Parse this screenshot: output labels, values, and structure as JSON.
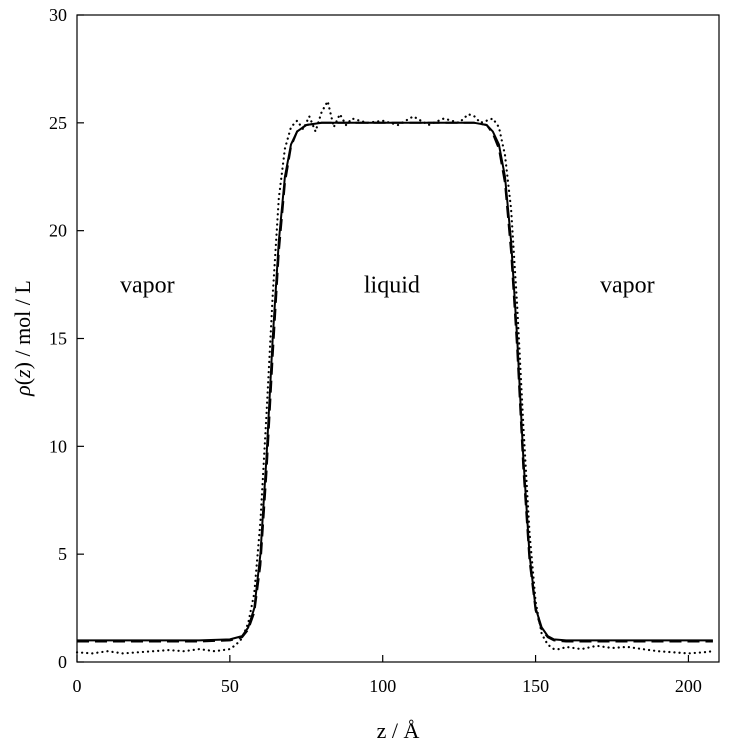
{
  "chart_data": {
    "type": "line",
    "title": "",
    "xlabel": "z / Å",
    "ylabel_parts": [
      "ρ",
      "(",
      "z",
      ") / mol / L"
    ],
    "xlim": [
      0,
      210
    ],
    "ylim": [
      0,
      30
    ],
    "xticks": [
      0,
      50,
      100,
      150,
      200
    ],
    "yticks": [
      0,
      5,
      10,
      15,
      20,
      25,
      30
    ],
    "grid": false,
    "legend": "none",
    "annotations": [
      {
        "text": "vapor",
        "x": 23,
        "y": 17.5
      },
      {
        "text": "liquid",
        "x": 103,
        "y": 17.5
      },
      {
        "text": "vapor",
        "x": 180,
        "y": 17.5
      }
    ],
    "series": [
      {
        "style": "solid",
        "x": [
          0,
          40,
          50,
          54,
          56,
          58,
          60,
          62,
          64,
          66,
          68,
          70,
          72,
          75,
          80,
          90,
          100,
          110,
          120,
          130,
          134,
          136,
          138,
          140,
          142,
          144,
          146,
          148,
          150,
          152,
          154,
          156,
          160,
          170,
          180,
          190,
          200,
          208
        ],
        "y": [
          1.0,
          1.0,
          1.05,
          1.2,
          1.6,
          2.5,
          5.0,
          9.5,
          15.0,
          19.5,
          22.5,
          24.0,
          24.6,
          24.9,
          25.0,
          25.0,
          25.0,
          25.0,
          25.0,
          25.0,
          24.9,
          24.6,
          24.0,
          22.5,
          19.5,
          15.0,
          9.5,
          5.0,
          2.5,
          1.6,
          1.2,
          1.05,
          1.0,
          1.0,
          1.0,
          1.0,
          1.0,
          1.0
        ]
      },
      {
        "style": "dashed",
        "x": [
          0,
          40,
          50,
          54,
          56,
          58,
          60,
          62,
          64,
          66,
          68,
          70,
          72,
          75,
          80,
          90,
          100,
          110,
          120,
          130,
          134,
          136,
          138,
          140,
          142,
          144,
          146,
          148,
          150,
          152,
          154,
          156,
          160,
          170,
          180,
          190,
          200,
          208
        ],
        "y": [
          0.95,
          0.95,
          1.0,
          1.15,
          1.5,
          2.3,
          4.5,
          8.8,
          14.2,
          19.0,
          22.2,
          23.9,
          24.6,
          24.9,
          25.0,
          25.0,
          25.0,
          25.0,
          25.0,
          25.0,
          24.9,
          24.5,
          23.8,
          22.2,
          19.0,
          14.5,
          9.0,
          4.7,
          2.4,
          1.5,
          1.15,
          1.0,
          0.95,
          0.95,
          0.95,
          0.95,
          0.95,
          0.95
        ]
      },
      {
        "style": "dotted",
        "x": [
          0,
          5,
          10,
          15,
          20,
          25,
          30,
          35,
          40,
          45,
          50,
          52,
          54,
          56,
          58,
          60,
          62,
          64,
          66,
          68,
          70,
          72,
          74,
          76,
          78,
          80,
          82,
          84,
          86,
          88,
          90,
          95,
          100,
          105,
          110,
          115,
          120,
          125,
          128,
          130,
          132,
          134,
          136,
          138,
          140,
          142,
          144,
          146,
          148,
          150,
          152,
          154,
          156,
          158,
          160,
          165,
          170,
          175,
          180,
          185,
          190,
          195,
          200,
          205,
          208
        ],
        "y": [
          0.45,
          0.4,
          0.5,
          0.4,
          0.45,
          0.5,
          0.55,
          0.5,
          0.6,
          0.5,
          0.6,
          0.8,
          1.1,
          1.8,
          3.2,
          6.5,
          11.5,
          17.0,
          21.5,
          23.8,
          24.8,
          25.1,
          24.7,
          25.3,
          24.6,
          25.5,
          26.0,
          24.8,
          25.4,
          24.9,
          25.2,
          25.0,
          25.1,
          24.9,
          25.3,
          24.9,
          25.2,
          25.0,
          25.4,
          25.3,
          25.0,
          25.1,
          25.2,
          24.8,
          23.5,
          21.0,
          16.5,
          11.0,
          6.0,
          2.8,
          1.3,
          0.8,
          0.6,
          0.6,
          0.7,
          0.6,
          0.75,
          0.65,
          0.7,
          0.6,
          0.5,
          0.45,
          0.4,
          0.45,
          0.5
        ]
      }
    ]
  }
}
